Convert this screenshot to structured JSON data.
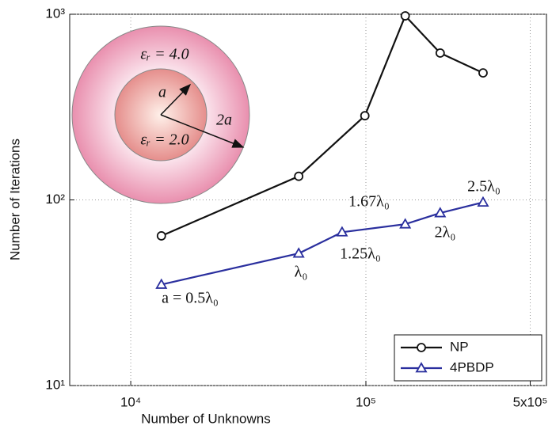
{
  "chart_data": {
    "type": "line",
    "x_label": "Number of Unknowns",
    "y_label": "Number of Iterations",
    "log_x": true,
    "log_y": true,
    "grid": true,
    "xlim": [
      5500,
      586000
    ],
    "ylim": [
      10,
      1000
    ],
    "xticks": [
      {
        "value": 10000,
        "label": "10⁴"
      },
      {
        "value": 100000,
        "label": "10⁵"
      },
      {
        "value": 500000,
        "label": "5x10⁵"
      }
    ],
    "yticks": [
      {
        "value": 10,
        "label": "10¹"
      },
      {
        "value": 100,
        "label": "10²"
      },
      {
        "value": 1000,
        "label": "10³"
      }
    ],
    "legend": "lower right",
    "series": [
      {
        "name": "NP",
        "color": "#111111",
        "marker": "circle",
        "x": [
          13500,
          51800,
          99000,
          147000,
          207000,
          315000
        ],
        "values": [
          64,
          134,
          284,
          980,
          618,
          483
        ]
      },
      {
        "name": "4PBDP",
        "color": "#2a2f9e",
        "marker": "triangle",
        "x": [
          13500,
          51800,
          79200,
          147000,
          207000,
          315000
        ],
        "values": [
          35,
          51.5,
          67,
          74,
          85,
          97
        ]
      }
    ],
    "annotations": [
      "a = 0.5λ₀",
      "λ₀",
      "1.25λ₀",
      "1.67λ₀",
      "2λ₀",
      "2.5λ₀"
    ],
    "inset_labels": [
      "εᵣ = 4.0",
      "a",
      "2a",
      "εᵣ = 2.0"
    ]
  }
}
